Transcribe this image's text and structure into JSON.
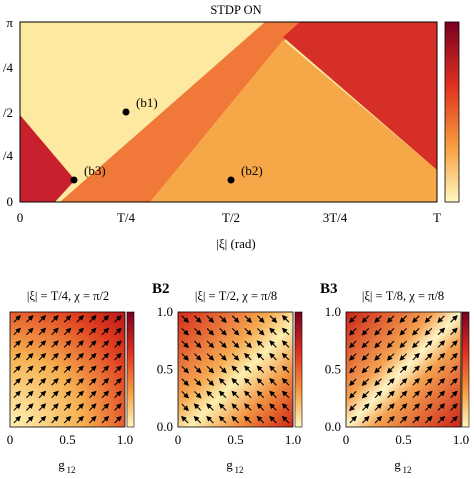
{
  "top": {
    "title": "STDP ON",
    "x_ticks": [
      "0",
      "T/4",
      "T/2",
      "3T/4",
      "T"
    ],
    "y_ticks": [
      "π",
      "/4",
      "/2",
      "/4",
      "0"
    ],
    "x_label": "|ξ| (rad)",
    "points": [
      "(b1)",
      "(b2)",
      "(b3)"
    ]
  },
  "panels": [
    {
      "title": "|ξ| = T/4, χ = π/2"
    },
    {
      "label": "B2",
      "title": "|ξ| = T/2, χ = π/8"
    },
    {
      "label": "B3",
      "title": "|ξ| = T/8, χ = π/8"
    }
  ],
  "panel_y_ticks": [
    "1.0",
    "0.5",
    "0.0"
  ],
  "panel_x_ticks": [
    "0",
    "0.5",
    "1.0"
  ],
  "panel_x_label": "g",
  "panel_x_label_sub": "12"
}
